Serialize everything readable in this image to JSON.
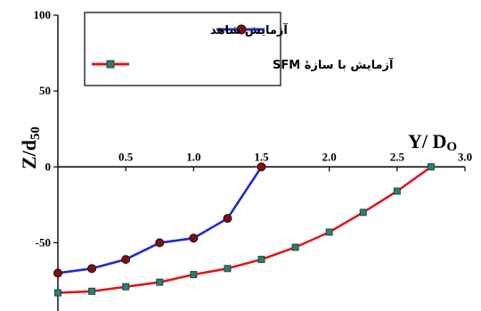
{
  "chart_data": {
    "type": "line",
    "title": "",
    "xlabel": "Y/ D",
    "xlabel_sub": "O",
    "ylabel": "Z/d",
    "ylabel_sub": "50",
    "xlim": [
      0,
      3.0
    ],
    "ylim": [
      -95,
      100
    ],
    "x_ticks": [
      "0.5",
      "1.0",
      "1.5",
      "2.0",
      "2.5",
      "3.0"
    ],
    "y_ticks": [
      "100",
      "50",
      "0",
      "-50"
    ],
    "grid": false,
    "legend_position": "top-left",
    "series": [
      {
        "name": "آزمایش شاهد",
        "color": "#1f2bd6",
        "marker_color": "#7a1010",
        "marker": "circle",
        "x": [
          0.0,
          0.25,
          0.5,
          0.75,
          1.0,
          1.25,
          1.5
        ],
        "y": [
          -70,
          -67,
          -61,
          -50,
          -47,
          -34,
          0
        ]
      },
      {
        "name": "آزمایش با سازهٔ SFM",
        "color": "#e01818",
        "marker_color": "#2e7d6e",
        "marker": "square",
        "x": [
          0.0,
          0.25,
          0.5,
          0.75,
          1.0,
          1.25,
          1.5,
          1.75,
          2.0,
          2.25,
          2.5,
          2.75
        ],
        "y": [
          -83,
          -82,
          -79,
          -76,
          -71,
          -67,
          -61,
          -53,
          -43,
          -30,
          -16,
          0
        ]
      }
    ]
  }
}
